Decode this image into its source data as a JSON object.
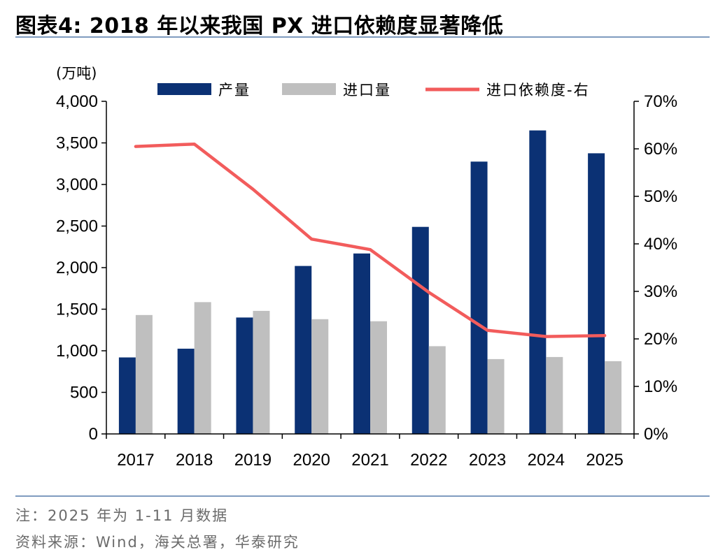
{
  "title": "图表4:   2018 年以来我国 PX 进口依赖度显著降低",
  "note": "注：2025 年为 1-11 月数据",
  "source": "资料来源：Wind，海关总署，华泰研究",
  "colors": {
    "production": "#0b3174",
    "import": "#bfbfbf",
    "dependency": "#f25c5c",
    "rule": "#7f9bbf"
  },
  "chart_data": {
    "type": "bar",
    "categories": [
      "2017",
      "2018",
      "2019",
      "2020",
      "2021",
      "2022",
      "2023",
      "2024",
      "2025"
    ],
    "series": [
      {
        "name": "产量",
        "type": "bar",
        "axis": "left",
        "values": [
          920,
          1025,
          1400,
          2020,
          2170,
          2490,
          3275,
          3650,
          3375
        ]
      },
      {
        "name": "进口量",
        "type": "bar",
        "axis": "left",
        "values": [
          1430,
          1585,
          1480,
          1380,
          1355,
          1055,
          900,
          925,
          875
        ]
      },
      {
        "name": "进口依赖度-右",
        "type": "line",
        "axis": "right",
        "values": [
          60.5,
          61.0,
          51.5,
          41.0,
          38.8,
          29.8,
          21.8,
          20.5,
          20.7
        ]
      }
    ],
    "left_axis": {
      "unit_label": "(万吨)",
      "ylim": [
        0,
        4000
      ],
      "ticks": [
        0,
        500,
        1000,
        1500,
        2000,
        2500,
        3000,
        3500,
        4000
      ],
      "tick_labels": [
        "0",
        "500",
        "1,000",
        "1,500",
        "2,000",
        "2,500",
        "3,000",
        "3,500",
        "4,000"
      ]
    },
    "right_axis": {
      "ylim": [
        0,
        70
      ],
      "ticks": [
        0,
        10,
        20,
        30,
        40,
        50,
        60,
        70
      ],
      "tick_labels": [
        "0%",
        "10%",
        "20%",
        "30%",
        "40%",
        "50%",
        "60%",
        "70%"
      ]
    },
    "legend": {
      "position": "top",
      "items": [
        "产量",
        "进口量",
        "进口依赖度-右"
      ]
    },
    "grid": false
  }
}
